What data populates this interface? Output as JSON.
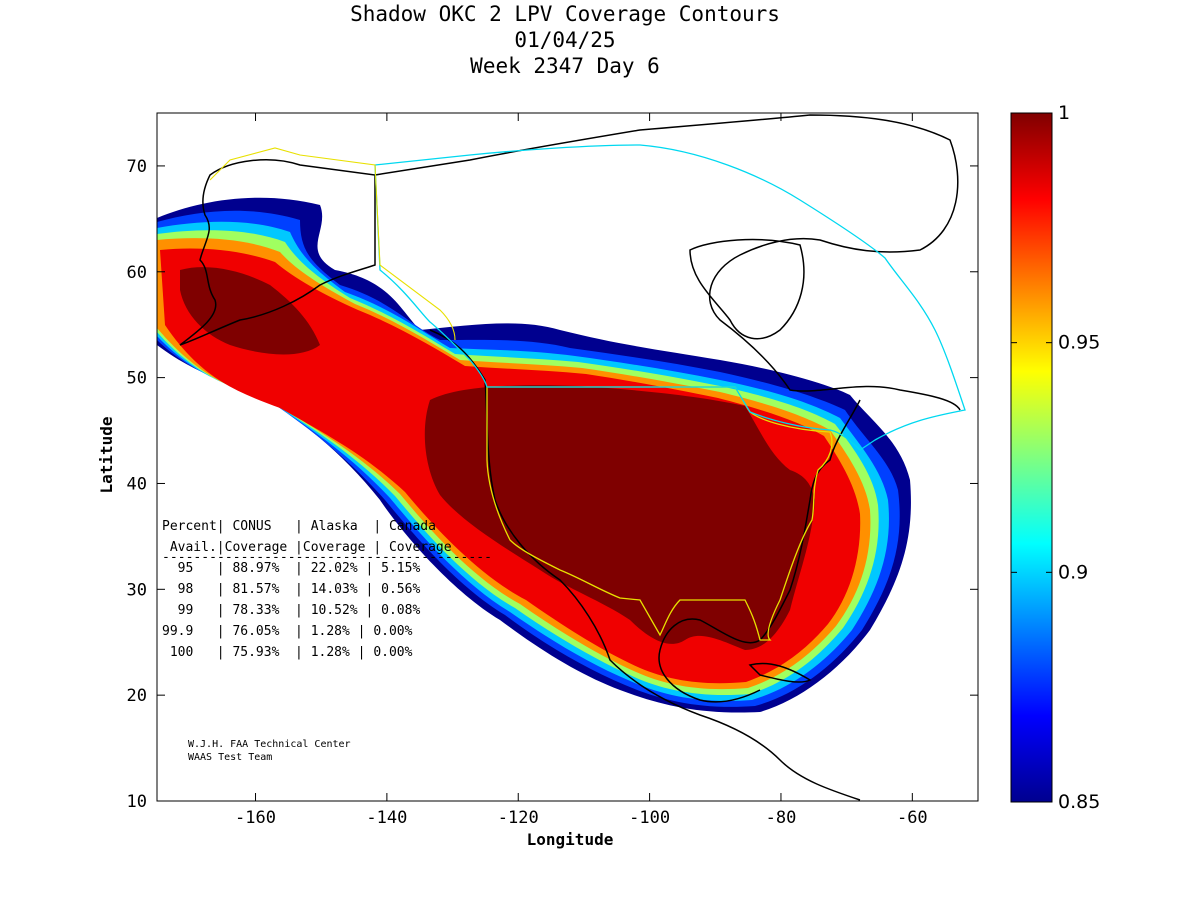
{
  "title_lines": [
    "Shadow OKC 2 LPV Coverage Contours",
    "01/04/25",
    "Week 2347 Day 6"
  ],
  "axes": {
    "xlabel": "Longitude",
    "ylabel": "Latitude",
    "x_ticks": [
      "-160",
      "-140",
      "-120",
      "-100",
      "-80",
      "-60"
    ],
    "y_ticks": [
      "70",
      "60",
      "50",
      "40",
      "30",
      "20",
      "10"
    ],
    "xlim": [
      -175,
      -50
    ],
    "ylim": [
      10,
      75
    ]
  },
  "colorbar": {
    "ticks": [
      "1",
      "0.95",
      "0.9",
      "0.85"
    ],
    "range": [
      0.85,
      1.0
    ],
    "colormap": "jet"
  },
  "coverage_table": {
    "header_line1": "Percent| CONUS   | Alaska  | Canada",
    "header_line2": " Avail.|Coverage |Coverage | Coverage",
    "separator": "------------------------------------------",
    "rows": [
      "  95   | 88.97%  | 22.02% | 5.15%",
      "  98   | 81.57%  | 14.03% | 0.56%",
      "  99   | 78.33%  | 10.52% | 0.08%",
      "99.9   | 76.05%  | 1.28% | 0.00%",
      " 100   | 75.93%  | 1.28% | 0.00%"
    ]
  },
  "credit": [
    "W.J.H. FAA Technical Center",
    "WAAS Test Team"
  ],
  "colors": {
    "conus_boundary": "#e8e000",
    "canada_boundary": "#00d8f0",
    "coastline": "#000000"
  },
  "chart_data": {
    "type": "heatmap",
    "title": "Shadow OKC 2 LPV Coverage Contours",
    "xlabel": "Longitude",
    "ylabel": "Latitude",
    "xlim": [
      -175,
      -50
    ],
    "ylim": [
      10,
      75
    ],
    "value_range": [
      0.85,
      1.0
    ],
    "table": {
      "columns": [
        "Percent Avail.",
        "CONUS Coverage",
        "Alaska Coverage",
        "Canada Coverage"
      ],
      "rows": [
        [
          "95",
          "88.97%",
          "22.02%",
          "5.15%"
        ],
        [
          "98",
          "81.57%",
          "14.03%",
          "0.56%"
        ],
        [
          "99",
          "78.33%",
          "10.52%",
          "0.08%"
        ],
        [
          "99.9",
          "76.05%",
          "1.28%",
          "0.00%"
        ],
        [
          "100",
          "75.93%",
          "1.28%",
          "0.00%"
        ]
      ]
    }
  }
}
